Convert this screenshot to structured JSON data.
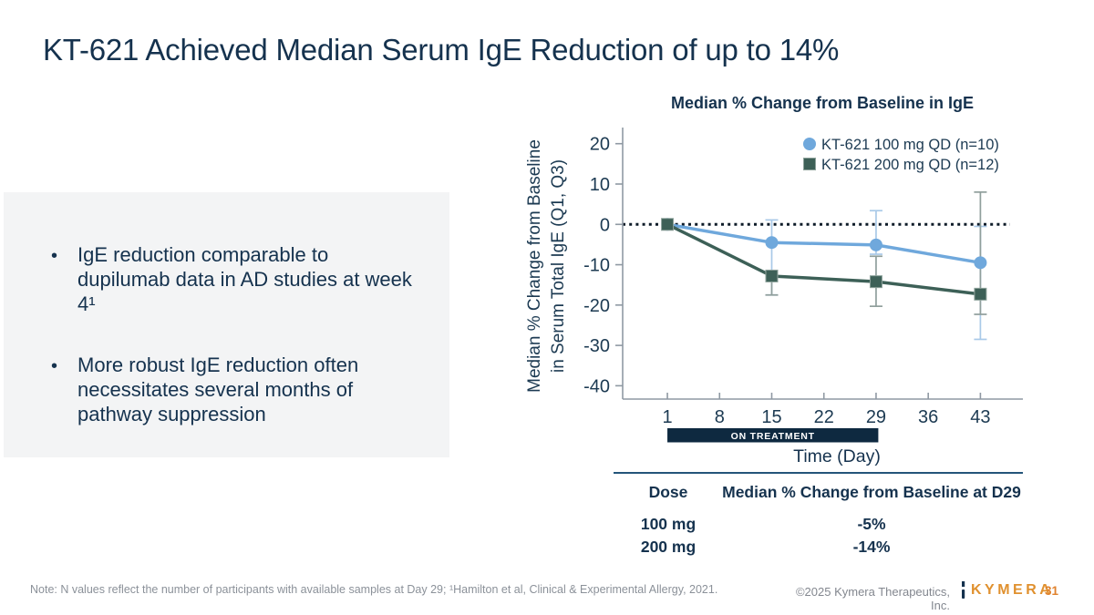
{
  "slide": {
    "title": "KT-621 Achieved Median Serum IgE Reduction of up to 14%",
    "bullets": [
      "IgE reduction comparable to dupilumab data in AD studies at week 4¹",
      "More robust IgE reduction often necessitates several months of pathway suppression"
    ],
    "footnote": "Note: N values reflect the number of participants with available samples at Day 29; ¹Hamilton et al, Clinical & Experimental Allergy, 2021.",
    "copyright": "©2025 Kymera Therapeutics, Inc.",
    "logo_text": "KYMERA",
    "page_number": "31"
  },
  "chart_data": {
    "type": "line",
    "title": "Median % Change from Baseline in IgE",
    "xlabel": "Time (Day)",
    "ylabel_line1": "Median % Change from Baseline",
    "ylabel_line2": "in Serum Total IgE (Q1, Q3)",
    "x_ticks": [
      1,
      8,
      15,
      22,
      29,
      36,
      43
    ],
    "y_ticks": [
      20,
      10,
      0,
      -10,
      -20,
      -30,
      -40
    ],
    "xlim": [
      -5,
      48.7
    ],
    "ylim": [
      -43.3,
      24
    ],
    "grid": false,
    "zero_line": true,
    "legend_position": "top-right",
    "on_treatment": {
      "label": "ON TREATMENT",
      "from_day": 1,
      "to_day": 29.3
    },
    "x": [
      1,
      15,
      29,
      43
    ],
    "series": [
      {
        "name": "KT-621 100 mg QD (n=10)",
        "marker": "circle",
        "color": "#6fa8dc",
        "error_color": "#a9c9e8",
        "values": [
          0,
          -4.5,
          -5.1,
          -9.5
        ],
        "error_high": [
          null,
          1.1,
          3.4,
          -0.5
        ],
        "error_low": [
          null,
          -17.5,
          -7.4,
          -28.5
        ]
      },
      {
        "name": "KT-621 200 mg QD (n=12)",
        "marker": "square",
        "color": "#3d6057",
        "error_color": "#909f9c",
        "values": [
          0,
          -12.8,
          -14.2,
          -17.3
        ],
        "error_high": [
          null,
          -12.8,
          -7.9,
          8.0
        ],
        "error_low": [
          null,
          -17.5,
          -20.3,
          -22.3
        ]
      }
    ]
  },
  "table": {
    "headers": [
      "Dose",
      "Median % Change from Baseline at D29"
    ],
    "rows": [
      [
        "100 mg",
        "-5%"
      ],
      [
        "200 mg",
        "-14%"
      ]
    ]
  }
}
